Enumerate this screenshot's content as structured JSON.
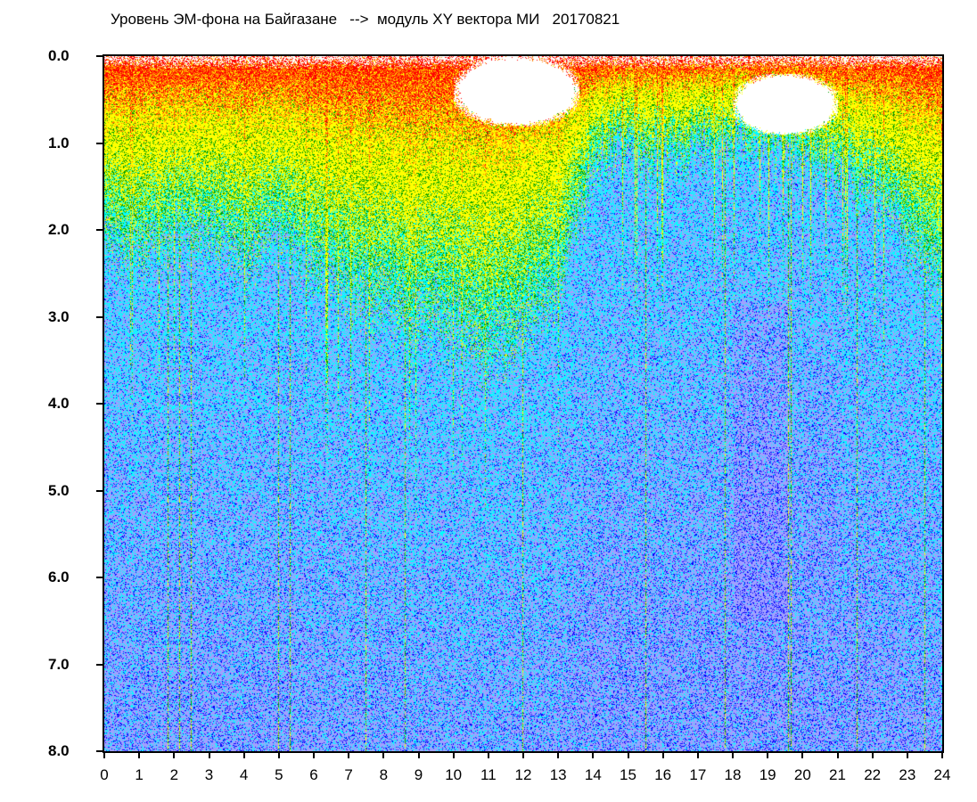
{
  "chart_data": {
    "type": "heatmap",
    "title": "Уровень ЭМ-фона на Байгазане   -->  модуль XY вектора МИ   20170821",
    "xlabel": "",
    "ylabel": "",
    "xlim": [
      0,
      24
    ],
    "ylim": [
      0.0,
      8.0
    ],
    "y_inverted": true,
    "x_ticks": [
      "0",
      "1",
      "2",
      "3",
      "4",
      "5",
      "6",
      "7",
      "8",
      "9",
      "10",
      "11",
      "12",
      "13",
      "14",
      "15",
      "16",
      "17",
      "18",
      "19",
      "20",
      "21",
      "22",
      "23",
      "24"
    ],
    "y_ticks": [
      "0.0",
      "1.0",
      "2.0",
      "3.0",
      "4.0",
      "5.0",
      "6.0",
      "7.0",
      "8.0"
    ],
    "grid": false,
    "colorscale": [
      "#ff0000",
      "#ff8000",
      "#ffff00",
      "#00a000",
      "#00ffff",
      "#a0a0ff",
      "#0000ff"
    ],
    "approx_green_to_cyan_boundary_by_hour": [
      2.0,
      2.2,
      2.0,
      2.0,
      2.2,
      2.0,
      2.3,
      2.6,
      2.7,
      3.0,
      3.0,
      3.3,
      3.0,
      2.6,
      1.2,
      1.0,
      1.2,
      1.0,
      0.9,
      1.0,
      1.1,
      1.3,
      1.5,
      2.0,
      2.5
    ],
    "blank_regions": [
      {
        "hours": [
          10,
          13.6
        ],
        "depth": [
          0.0,
          0.8
        ]
      },
      {
        "hours": [
          18,
          21
        ],
        "depth": [
          0.2,
          0.9
        ]
      }
    ]
  }
}
